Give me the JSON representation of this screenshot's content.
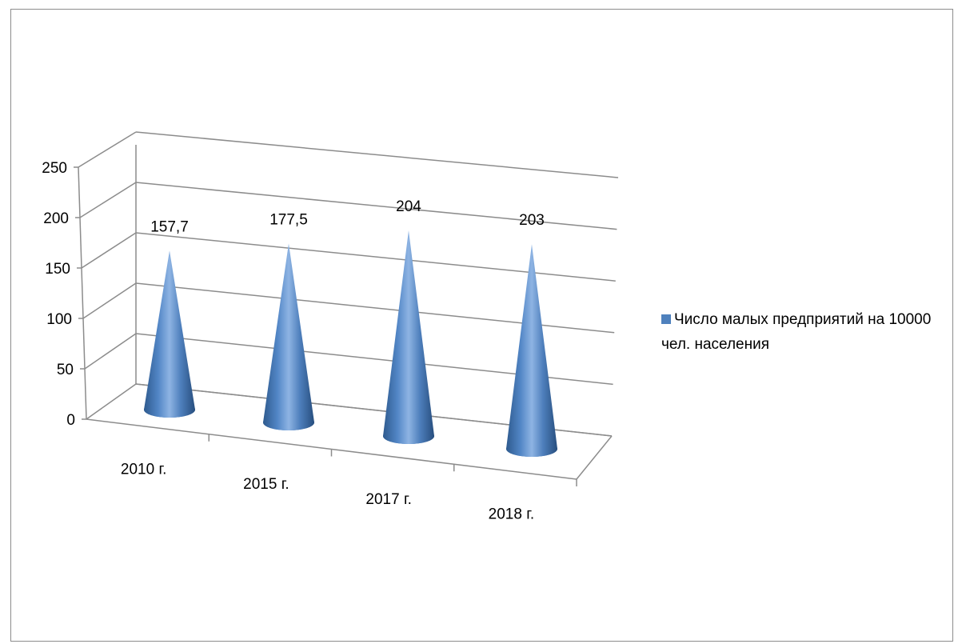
{
  "chart_data": {
    "type": "bar",
    "bar_shape": "cone",
    "three_d": true,
    "categories": [
      "2010 г.",
      "2015 г.",
      "2017 г.",
      "2018 г."
    ],
    "series": [
      {
        "name": "Число малых предприятий на 10000 чел. населения",
        "values": [
          157.7,
          177.5,
          204,
          203
        ],
        "data_labels": [
          "157,7",
          "177,5",
          "204",
          "203"
        ],
        "color": "#4F81BD"
      }
    ],
    "title": "",
    "xlabel": "",
    "ylabel": "",
    "ylim": [
      0,
      250
    ],
    "yticks": [
      0,
      50,
      100,
      150,
      200,
      250
    ],
    "grid": true,
    "legend_position": "right"
  }
}
